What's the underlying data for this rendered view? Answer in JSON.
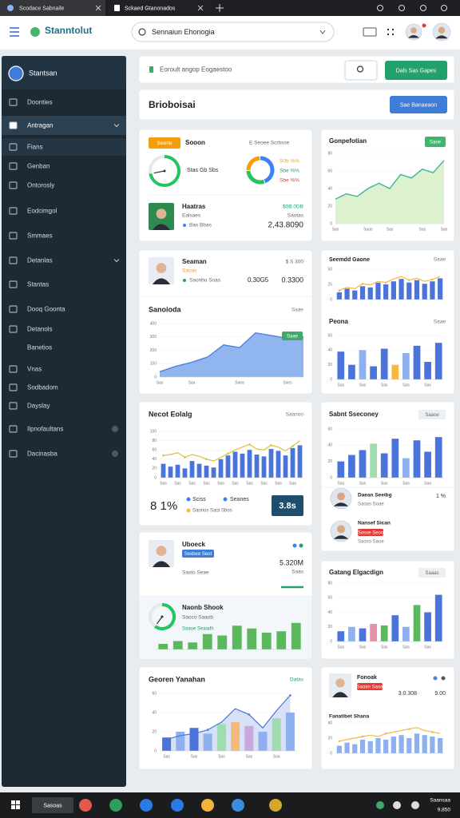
{
  "browser": {
    "tabs": [
      "Scodace Sabnaile",
      "Sckaed Gtanonados"
    ],
    "app_name": "Stanntolut",
    "search": "Sennaiun Ehonogia"
  },
  "sidebar": {
    "user": "Stantsan",
    "items": [
      "Doonties",
      "Antragan",
      "Fians",
      "Genban",
      "Ontorosly",
      "Eodcimgol",
      "Smmaes",
      "Detanlas",
      "Stantas",
      "Dooq Goonta",
      "Detanols",
      "Banetios",
      "Vnas",
      "Sodbadom",
      "Dayslay",
      "Ilpnofaultans",
      "Dacinasba"
    ]
  },
  "topbar": {
    "text": "Eoroult angop Eogaestoo",
    "button": "Dals Sas Gapes"
  },
  "header": {
    "title": "Brioboisai",
    "button": "Sae Banaeaon"
  },
  "cards": [
    {
      "badge": "Seonte",
      "title": "Sooon",
      "meta": "E Seoee Scrbsse",
      "gauge": {
        "type": "gauge",
        "value": 72,
        "max": 100,
        "color": "#22c55e"
      },
      "gauge_label": "Stas Gb Sbs",
      "donut": {
        "type": "pie",
        "values": [
          45,
          30,
          25
        ],
        "colors": [
          "#3b82f6",
          "#22c55e",
          "#f59e0b"
        ]
      },
      "donut_stats": [
        "S0b %%",
        "Sbe %%",
        "Sbe %%"
      ],
      "person": "Haatras",
      "role": "Ealsaes",
      "tag": "Bas Bbas",
      "amount_label": "$0B.0DB",
      "amount_sub": "Saotas",
      "amount": "2,43.8090"
    },
    {
      "title": "Gonpefotian",
      "badge": "Saoe",
      "chart": {
        "type": "area",
        "values": [
          28,
          34,
          31,
          40,
          46,
          40,
          56,
          52,
          62,
          58,
          72
        ],
        "ylim": [
          0,
          80
        ],
        "yticks": [
          0,
          20,
          40,
          60,
          80
        ],
        "categories": [
          "Sas",
          null,
          null,
          "Saas",
          null,
          "Sas",
          null,
          null,
          "Sas",
          null,
          "Sas"
        ],
        "color": "#3fb39b",
        "fill": "#d6efc4"
      }
    },
    {
      "name": "Seaman",
      "tag": "Saoas",
      "sub": "Saonbo Soas",
      "head": "$ S 300",
      "v1": "0.30G5",
      "v2": "0.3300",
      "title": "Sanoioda",
      "badge": "Saae",
      "chart_badge": "Saae",
      "chart": {
        "type": "area",
        "values": [
          40,
          80,
          110,
          150,
          240,
          220,
          330,
          310,
          290,
          300
        ],
        "ylim": [
          0,
          400
        ],
        "yticks": [
          0,
          100,
          200,
          300,
          400
        ],
        "categories": [
          "Sas",
          null,
          "Saa",
          null,
          null,
          "Saea",
          null,
          null,
          "Saes",
          null
        ],
        "color": "#4f83dc",
        "fill": "#7ea9ec"
      }
    },
    {
      "charts": [
        {
          "title": "Seemdd Gaone",
          "badge": "Saae",
          "chart": {
            "type": "combo",
            "values": [
              12,
              18,
              15,
              22,
              20,
              28,
              25,
              30,
              34,
              28,
              32,
              26,
              30,
              35
            ],
            "line": [
              15,
              20,
              18,
              26,
              24,
              30,
              28,
              34,
              38,
              32,
              35,
              30,
              33,
              38
            ],
            "ylim": [
              0,
              50
            ],
            "yticks": [
              0,
              25,
              50
            ],
            "color": "#4a74d9",
            "line_color": "#f5b942"
          }
        },
        {
          "title": "Peona",
          "badge": "Saae",
          "chart": {
            "type": "bar",
            "values": [
              38,
              20,
              40,
              18,
              42,
              20,
              36,
              46,
              24,
              50
            ],
            "ylim": [
              0,
              60
            ],
            "yticks": [
              0,
              20,
              40,
              60
            ],
            "categories": [
              "Sas",
              null,
              "Sas",
              null,
              "Sas",
              null,
              "Sas",
              null,
              "Sas",
              null
            ],
            "colors": [
              "#4a74d9",
              "#4a74d9",
              "#8fb0ee",
              "#4a74d9",
              "#4a74d9",
              "#f5b942",
              "#8fb0ee",
              "#4a74d9",
              "#4a74d9",
              "#4a74d9"
            ]
          }
        }
      ]
    },
    {
      "title": "Necot Eolalg",
      "badge": "Saanoo",
      "chart": {
        "type": "combo",
        "values": [
          30,
          24,
          28,
          20,
          36,
          30,
          26,
          22,
          40,
          48,
          56,
          52,
          60,
          50,
          46,
          62,
          58,
          48,
          64,
          70
        ],
        "line": [
          48,
          50,
          54,
          44,
          50,
          46,
          40,
          36,
          44,
          52,
          60,
          66,
          72,
          62,
          60,
          70,
          66,
          58,
          68,
          80
        ],
        "ylim": [
          0,
          100
        ],
        "yticks": [
          0,
          20,
          40,
          60,
          80,
          100
        ],
        "categories": [
          "Sas",
          null,
          "Sas",
          null,
          "Sas",
          null,
          "Sas",
          null,
          "Sas",
          null,
          "Sas",
          null,
          "Sas",
          null,
          "Sas",
          null,
          "Sas",
          null,
          "Saa",
          null
        ],
        "color": "#4a74d9",
        "line_color": "#d9c23a"
      },
      "stat": "8 1%",
      "legend": [
        "Sciss",
        "Seanes",
        "Saonos Saot Sbos"
      ],
      "kpi": "3.8s"
    },
    {
      "title": "Sabnt Sseconey",
      "badge": "Saaoe",
      "chart": {
        "type": "bar",
        "values": [
          20,
          28,
          34,
          42,
          30,
          48,
          24,
          46,
          32,
          50
        ],
        "ylim": [
          0,
          60
        ],
        "yticks": [
          0,
          20,
          40,
          60
        ],
        "categories": [
          "Sas",
          null,
          "Sas",
          null,
          "Sas",
          null,
          "Sas",
          null,
          "Saa",
          null
        ],
        "colors": [
          "#4a74d9",
          "#4a74d9",
          "#4a74d9",
          "#9fdcb0",
          "#4a74d9",
          "#4a74d9",
          "#8fb0ee",
          "#4a74d9",
          "#4a74d9",
          "#4a74d9"
        ]
      },
      "people": [
        {
          "name": "Daean Seeibg",
          "sub": "Saoas Soae",
          "value": "1 %"
        },
        {
          "name": "Nansef Sican",
          "tag": "Sosse Seoo",
          "sub": "Saoso Saoe"
        }
      ]
    },
    {
      "name": "Uboeck",
      "tag": "Sexbee Seot",
      "sub": "Sasto Seae",
      "amount": "5.320M",
      "amount_sub": "Saas",
      "gauge": {
        "type": "gauge",
        "value": 60,
        "max": 100,
        "color": "#22c55e"
      },
      "gauge_title": "Naonb Shook",
      "gauge_sub": "Saoco Saaob",
      "gauge_note": "Saaoe Seaadh",
      "chart": {
        "type": "bar",
        "values": [
          8,
          12,
          10,
          22,
          20,
          34,
          30,
          24,
          26,
          38
        ],
        "ylim": [
          0,
          40
        ],
        "color": "#5cb85c"
      }
    },
    {
      "title": "Gatang Elgacdign",
      "badge": "Saaas",
      "chart": {
        "type": "bar",
        "values": [
          14,
          20,
          18,
          24,
          22,
          36,
          20,
          50,
          40,
          64
        ],
        "ylim": [
          0,
          80
        ],
        "yticks": [
          0,
          20,
          40,
          60,
          80
        ],
        "categories": [
          "Sas",
          null,
          "Sas",
          null,
          "Sas",
          null,
          "Sas",
          null,
          "Sas",
          null
        ],
        "colors": [
          "#4a74d9",
          "#8fb0ee",
          "#4a74d9",
          "#e58fa8",
          "#5cb85c",
          "#4a74d9",
          "#8fb0ee",
          "#5cb85c",
          "#4a74d9",
          "#4a74d9"
        ]
      }
    },
    {
      "title": "Georen Yanahan",
      "badge": "Datas",
      "chart": {
        "type": "combo",
        "area": true,
        "values": [
          14,
          20,
          24,
          18,
          28,
          30,
          26,
          20,
          34,
          40
        ],
        "line": [
          12,
          16,
          18,
          22,
          30,
          44,
          38,
          24,
          42,
          58
        ],
        "ylim": [
          0,
          60
        ],
        "yticks": [
          0,
          20,
          40,
          60
        ],
        "categories": [
          "Sas",
          null,
          "Sas",
          null,
          "Sas",
          null,
          "Sas",
          null,
          "Saa",
          null
        ],
        "colors": [
          "#4a74d9",
          "#8fb0ee",
          "#4a74d9",
          "#8fb0ee",
          "#9fdcb0",
          "#f5b97a",
          "#c8a8e0",
          "#8fb0ee",
          "#9fdcb0",
          "#8fb0ee"
        ],
        "line_color": "#4a74d9"
      }
    },
    {
      "name": "Fonoak",
      "tag": "Saoan Saoa",
      "v1": "3.0.308",
      "v2": "9.00",
      "title": "Fanatibet Shana",
      "chart": {
        "type": "combo",
        "values": [
          10,
          14,
          12,
          18,
          16,
          20,
          18,
          22,
          24,
          20,
          26,
          24,
          22,
          20
        ],
        "line": [
          16,
          18,
          20,
          22,
          24,
          22,
          26,
          28,
          30,
          32,
          34,
          30,
          28,
          26
        ],
        "ylim": [
          0,
          40
        ],
        "yticks": [
          0,
          20,
          40
        ],
        "color": "#8fb0ee",
        "line_color": "#f5b942"
      }
    }
  ],
  "taskbar": {
    "app": "Sasoas",
    "clock": [
      "Saansaa",
      "9,850"
    ]
  }
}
